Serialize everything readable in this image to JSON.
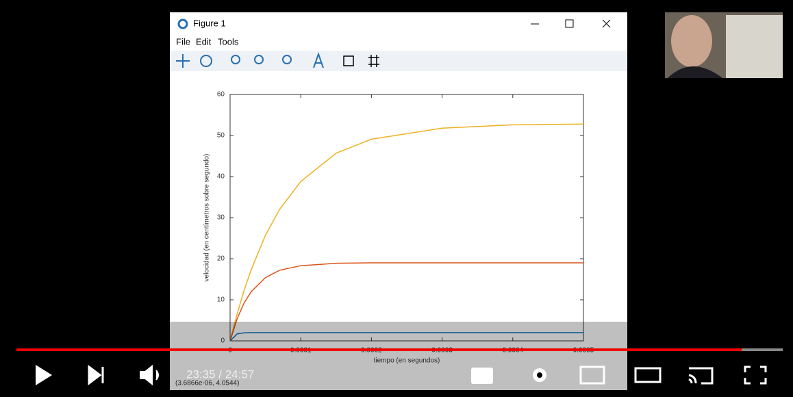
{
  "window": {
    "title": "Figure 1",
    "menu": [
      "File",
      "Edit",
      "Tools"
    ],
    "status": "(3.6866e-06, 4.0544)"
  },
  "plot": {
    "type": "line",
    "x_label": "tiempo (en segundos)",
    "y_label": "velocidad (en centímetros sobre segundo)",
    "x": [
      0,
      1e-05,
      2e-05,
      3e-05,
      5e-05,
      7e-05,
      0.0001,
      0.00015,
      0.0002,
      0.0003,
      0.0004,
      0.0005
    ],
    "series": [
      {
        "color": "#edb120",
        "values": [
          0,
          6.6,
          12.4,
          17.4,
          25.7,
          32.0,
          38.8,
          45.7,
          49.1,
          51.8,
          52.6,
          52.8
        ]
      },
      {
        "color": "#d95319",
        "values": [
          0,
          5.4,
          9.3,
          12.0,
          15.4,
          17.2,
          18.3,
          18.9,
          19,
          19,
          19,
          19
        ]
      },
      {
        "color": "#0072bd",
        "values": [
          0,
          1.7,
          1.96,
          2,
          2,
          2,
          2,
          2,
          2,
          2,
          2,
          2
        ]
      }
    ],
    "xlim": [
      0,
      0.0005
    ],
    "xticks": [
      0,
      0.0001,
      0.0002,
      0.0003,
      0.0004,
      0.0005
    ],
    "ylim": [
      0,
      60
    ],
    "yticks": [
      0,
      10,
      20,
      30,
      40,
      50,
      60
    ]
  },
  "player": {
    "time": "23:35 / 24:57"
  }
}
